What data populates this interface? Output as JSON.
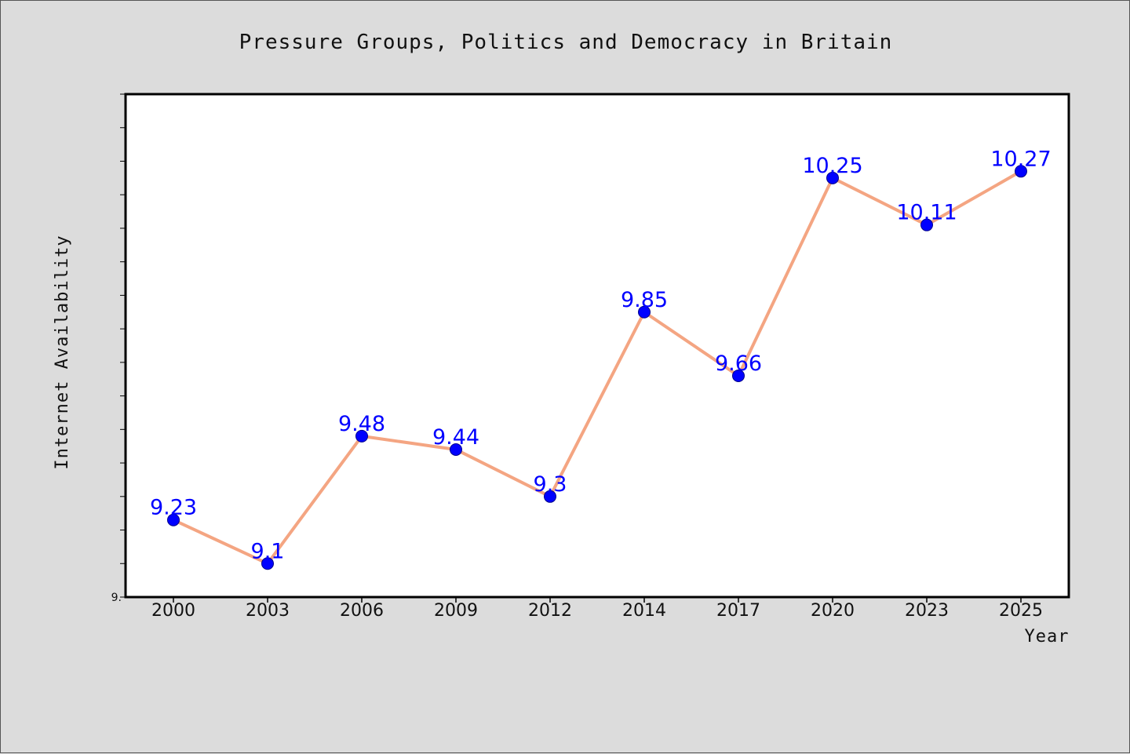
{
  "chart_data": {
    "type": "line",
    "title": "Pressure Groups, Politics and Democracy in Britain",
    "xlabel": "Year",
    "ylabel": "Internet Availability",
    "categories": [
      "2000",
      "2003",
      "2006",
      "2009",
      "2012",
      "2014",
      "2017",
      "2020",
      "2023",
      "2025"
    ],
    "series": [
      {
        "values": [
          9.23,
          9.1,
          9.48,
          9.44,
          9.3,
          9.85,
          9.66,
          10.25,
          10.11,
          10.27
        ],
        "labels": [
          "9.23",
          "9.1",
          "9.48",
          "9.44",
          "9.3",
          "9.85",
          "9.66",
          "10.25",
          "10.11",
          "10.27"
        ]
      }
    ],
    "ylim": [
      9.0,
      10.5
    ],
    "ytick_labels": [
      {
        "value": 9.0,
        "label": "9."
      }
    ],
    "grid": false,
    "legend": "none",
    "colors": {
      "line": "#f4a582",
      "marker": "#0000ff",
      "data_label": "#0000ff",
      "plot_background": "#ffffff",
      "figure_background": "#dcdcdc"
    }
  }
}
